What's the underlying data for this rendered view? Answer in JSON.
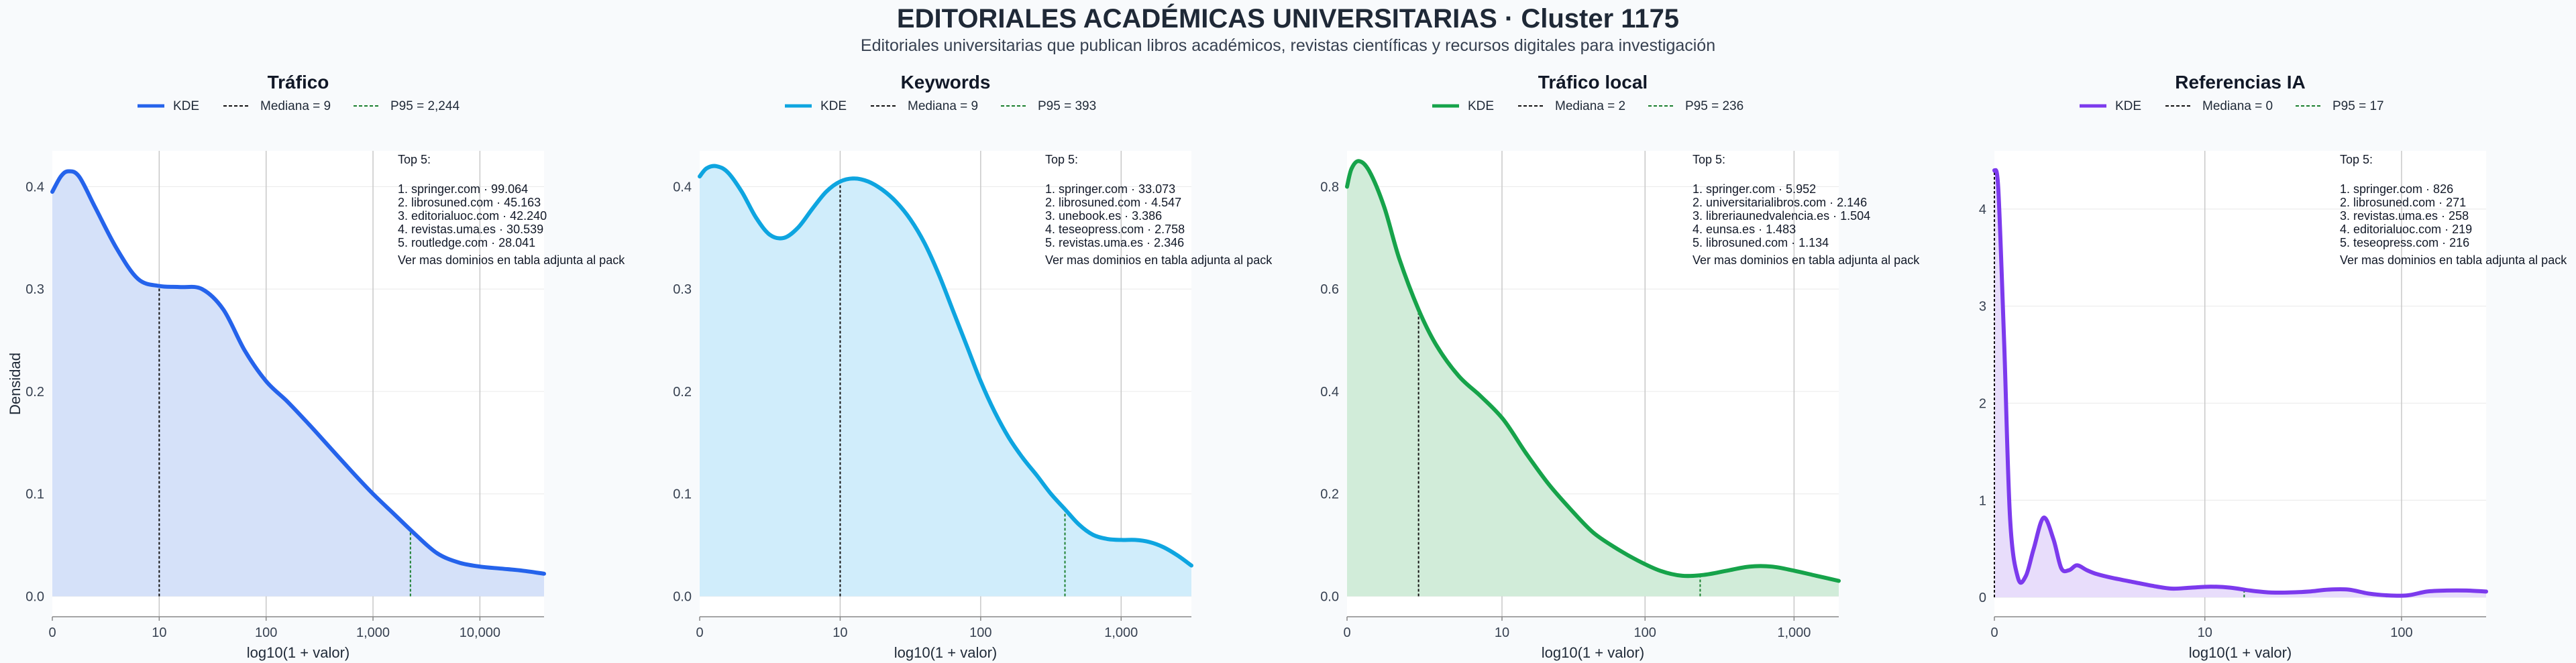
{
  "header": {
    "title": "EDITORIALES ACADÉMICAS UNIVERSITARIAS · Cluster 1175",
    "subtitle": "Editoriales universitarias que publican libros académicos, revistas científicas y recursos digitales para investigación"
  },
  "colors": {
    "background": "#f8fafc",
    "median_line": "#111111",
    "p95_line": "#1a7f2e"
  },
  "chart_data": [
    {
      "type": "area",
      "title": "Tráfico",
      "xlabel": "log10(1 + valor)",
      "ylabel": "Densidad",
      "color": "#2563eb",
      "fill": "#d5e1f9",
      "xlim": [
        0,
        4.6
      ],
      "ylim": [
        -0.02,
        0.435
      ],
      "x_ticks": [
        {
          "v": 0,
          "label": "0"
        },
        {
          "v": 1.0,
          "label": "10"
        },
        {
          "v": 2.0,
          "label": "100"
        },
        {
          "v": 3.0,
          "label": "1,000"
        },
        {
          "v": 4.0,
          "label": "10,000"
        }
      ],
      "y_ticks": [
        {
          "v": 0,
          "label": "0.0"
        },
        {
          "v": 0.1,
          "label": "0.1"
        },
        {
          "v": 0.2,
          "label": "0.2"
        },
        {
          "v": 0.3,
          "label": "0.3"
        },
        {
          "v": 0.4,
          "label": "0.4"
        }
      ],
      "legend": [
        "KDE",
        "Mediana = 9",
        "P95 = 2,244"
      ],
      "median_x": 1.0,
      "p95_x": 3.35,
      "kde": {
        "x": [
          0,
          0.08,
          0.15,
          0.25,
          0.4,
          0.6,
          0.8,
          1.0,
          1.2,
          1.4,
          1.6,
          1.8,
          2.0,
          2.2,
          2.4,
          2.6,
          2.8,
          3.0,
          3.2,
          3.4,
          3.6,
          3.8,
          4.0,
          4.2,
          4.4,
          4.6
        ],
        "y": [
          0.395,
          0.41,
          0.415,
          0.41,
          0.38,
          0.34,
          0.31,
          0.303,
          0.302,
          0.3,
          0.28,
          0.24,
          0.21,
          0.19,
          0.168,
          0.145,
          0.122,
          0.1,
          0.08,
          0.06,
          0.042,
          0.033,
          0.029,
          0.027,
          0.025,
          0.022
        ]
      },
      "top5": {
        "heading": "Top 5:",
        "items": [
          "1. springer.com · 99.064",
          "2. librosuned.com · 45.163",
          "3. editorialuoc.com · 42.240",
          "4. revistas.uma.es · 30.539",
          "5. routledge.com · 28.041"
        ],
        "footer": "Ver mas dominios en tabla adjunta al pack"
      }
    },
    {
      "type": "area",
      "title": "Keywords",
      "xlabel": "log10(1 + valor)",
      "ylabel": "",
      "color": "#0ea5e0",
      "fill": "#d0edfb",
      "xlim": [
        0,
        3.5
      ],
      "ylim": [
        -0.02,
        0.435
      ],
      "x_ticks": [
        {
          "v": 0,
          "label": "0"
        },
        {
          "v": 1.0,
          "label": "10"
        },
        {
          "v": 2.0,
          "label": "100"
        },
        {
          "v": 3.0,
          "label": "1,000"
        }
      ],
      "y_ticks": [
        {
          "v": 0,
          "label": "0.0"
        },
        {
          "v": 0.1,
          "label": "0.1"
        },
        {
          "v": 0.2,
          "label": "0.2"
        },
        {
          "v": 0.3,
          "label": "0.3"
        },
        {
          "v": 0.4,
          "label": "0.4"
        }
      ],
      "legend": [
        "KDE",
        "Mediana = 9",
        "P95 = 393"
      ],
      "median_x": 1.0,
      "p95_x": 2.6,
      "kde": {
        "x": [
          0,
          0.05,
          0.12,
          0.2,
          0.3,
          0.4,
          0.5,
          0.6,
          0.7,
          0.8,
          0.9,
          1.0,
          1.1,
          1.2,
          1.3,
          1.4,
          1.5,
          1.6,
          1.7,
          1.8,
          1.9,
          2.0,
          2.1,
          2.2,
          2.3,
          2.4,
          2.5,
          2.6,
          2.7,
          2.8,
          2.9,
          3.0,
          3.1,
          3.2,
          3.3,
          3.4,
          3.5
        ],
        "y": [
          0.41,
          0.418,
          0.42,
          0.414,
          0.395,
          0.37,
          0.353,
          0.35,
          0.36,
          0.378,
          0.395,
          0.405,
          0.408,
          0.405,
          0.397,
          0.385,
          0.368,
          0.345,
          0.315,
          0.28,
          0.245,
          0.21,
          0.18,
          0.155,
          0.135,
          0.118,
          0.1,
          0.085,
          0.07,
          0.06,
          0.056,
          0.055,
          0.055,
          0.053,
          0.048,
          0.04,
          0.03
        ]
      },
      "top5": {
        "heading": "Top 5:",
        "items": [
          "1. springer.com · 33.073",
          "2. librosuned.com · 4.547",
          "3. unebook.es · 3.386",
          "4. teseopress.com · 2.758",
          "5. revistas.uma.es · 2.346"
        ],
        "footer": "Ver mas dominios en tabla adjunta al pack"
      }
    },
    {
      "type": "area",
      "title": "Tráfico local",
      "xlabel": "log10(1 + valor)",
      "ylabel": "",
      "color": "#16a34a",
      "fill": "#d1ecd9",
      "xlim": [
        0,
        3.3
      ],
      "ylim": [
        -0.04,
        0.87
      ],
      "x_ticks": [
        {
          "v": 0,
          "label": "0"
        },
        {
          "v": 1.04,
          "label": "10"
        },
        {
          "v": 2.0,
          "label": "100"
        },
        {
          "v": 3.0,
          "label": "1,000"
        }
      ],
      "y_ticks": [
        {
          "v": 0,
          "label": "0.0"
        },
        {
          "v": 0.2,
          "label": "0.2"
        },
        {
          "v": 0.4,
          "label": "0.4"
        },
        {
          "v": 0.6,
          "label": "0.6"
        },
        {
          "v": 0.8,
          "label": "0.8"
        }
      ],
      "legend": [
        "KDE",
        "Mediana = 2",
        "P95 = 236"
      ],
      "median_x": 0.48,
      "p95_x": 2.37,
      "kde": {
        "x": [
          0,
          0.03,
          0.08,
          0.15,
          0.25,
          0.35,
          0.48,
          0.6,
          0.75,
          0.9,
          1.05,
          1.2,
          1.35,
          1.5,
          1.65,
          1.8,
          1.95,
          2.1,
          2.25,
          2.4,
          2.55,
          2.7,
          2.85,
          3.0,
          3.15,
          3.3
        ],
        "y": [
          0.8,
          0.835,
          0.85,
          0.83,
          0.76,
          0.66,
          0.56,
          0.49,
          0.43,
          0.39,
          0.345,
          0.28,
          0.22,
          0.17,
          0.125,
          0.095,
          0.07,
          0.05,
          0.04,
          0.042,
          0.05,
          0.058,
          0.058,
          0.05,
          0.04,
          0.03
        ]
      },
      "top5": {
        "heading": "Top 5:",
        "items": [
          "1. springer.com · 5.952",
          "2. universitarialibros.com · 2.146",
          "3. libreriaunedvalencia.es · 1.504",
          "4. eunsa.es · 1.483",
          "5. librosuned.com · 1.134"
        ],
        "footer": "Ver mas dominios en tabla adjunta al pack"
      }
    },
    {
      "type": "area",
      "title": "Referencias IA",
      "xlabel": "log10(1 + valor)",
      "ylabel": "",
      "color": "#7c3aed",
      "fill": "#e8ddfb",
      "xlim": [
        0,
        2.5
      ],
      "ylim": [
        -0.2,
        4.6
      ],
      "x_ticks": [
        {
          "v": 0,
          "label": "0"
        },
        {
          "v": 1.07,
          "label": "10"
        },
        {
          "v": 2.07,
          "label": "100"
        }
      ],
      "y_ticks": [
        {
          "v": 0,
          "label": "0"
        },
        {
          "v": 1,
          "label": "1"
        },
        {
          "v": 2,
          "label": "2"
        },
        {
          "v": 3,
          "label": "3"
        },
        {
          "v": 4,
          "label": "4"
        }
      ],
      "legend": [
        "KDE",
        "Mediana = 0",
        "P95 = 17"
      ],
      "median_x": 0,
      "p95_x": 1.27,
      "kde": {
        "x": [
          0,
          0.02,
          0.05,
          0.08,
          0.12,
          0.16,
          0.2,
          0.25,
          0.3,
          0.34,
          0.38,
          0.42,
          0.47,
          0.52,
          0.6,
          0.7,
          0.8,
          0.9,
          1.0,
          1.1,
          1.2,
          1.3,
          1.4,
          1.5,
          1.6,
          1.7,
          1.8,
          1.9,
          2.0,
          2.1,
          2.2,
          2.3,
          2.4,
          2.5
        ],
        "y": [
          4.4,
          4.2,
          2.6,
          0.8,
          0.2,
          0.22,
          0.5,
          0.82,
          0.6,
          0.3,
          0.28,
          0.33,
          0.28,
          0.24,
          0.2,
          0.16,
          0.12,
          0.09,
          0.1,
          0.11,
          0.1,
          0.07,
          0.05,
          0.05,
          0.06,
          0.08,
          0.08,
          0.04,
          0.02,
          0.02,
          0.06,
          0.07,
          0.07,
          0.06
        ]
      },
      "top5": {
        "heading": "Top 5:",
        "items": [
          "1. springer.com · 826",
          "2. librosuned.com · 271",
          "3. revistas.uma.es · 258",
          "4. editorialuoc.com · 219",
          "5. teseopress.com · 216"
        ],
        "footer": "Ver mas dominios en tabla adjunta al pack"
      }
    }
  ]
}
